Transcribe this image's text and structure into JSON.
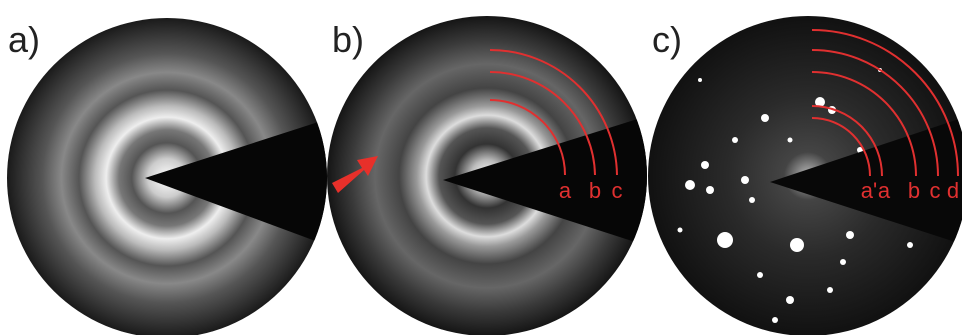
{
  "panels": [
    {
      "label": "a)"
    },
    {
      "label": "b)",
      "ring_labels": [
        "a",
        "b",
        "c"
      ]
    },
    {
      "label": "c)",
      "ring_labels": [
        "a'",
        "a",
        "b",
        "c",
        "d"
      ]
    }
  ]
}
